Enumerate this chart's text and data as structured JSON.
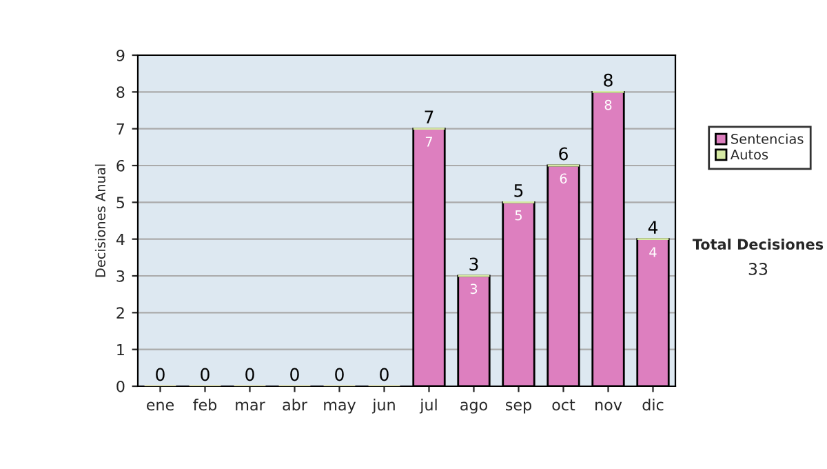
{
  "chart_data": {
    "type": "bar",
    "ylabel": "Decisiones Anual",
    "categories": [
      "ene",
      "feb",
      "mar",
      "abr",
      "may",
      "jun",
      "jul",
      "ago",
      "sep",
      "oct",
      "nov",
      "dic"
    ],
    "series": [
      {
        "name": "Sentencias",
        "color": "#dd7fbf",
        "values": [
          0,
          0,
          0,
          0,
          0,
          0,
          7,
          3,
          5,
          6,
          8,
          4
        ],
        "value_labels": [
          null,
          null,
          null,
          null,
          null,
          null,
          "7",
          "3",
          "5",
          "6",
          "8",
          "4"
        ]
      },
      {
        "name": "Autos",
        "color": "#d6eaa4",
        "values": [
          0,
          0,
          0,
          0,
          0,
          0,
          0,
          0,
          0,
          0,
          0,
          0
        ]
      }
    ],
    "stacked": true,
    "totals": [
      "0",
      "0",
      "0",
      "0",
      "0",
      "0",
      "7",
      "3",
      "5",
      "6",
      "8",
      "4"
    ],
    "ylim": [
      0,
      9
    ],
    "yticks": [
      0,
      1,
      2,
      3,
      4,
      5,
      6,
      7,
      8,
      9
    ],
    "grid": "y",
    "legend": "right",
    "annotations": [
      "Total Decisiones",
      "33"
    ]
  }
}
